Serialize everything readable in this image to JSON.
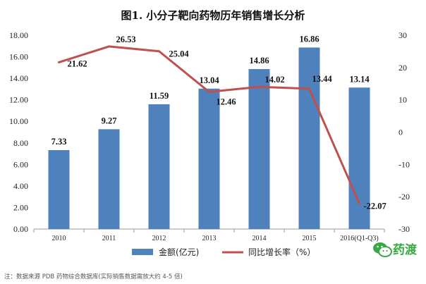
{
  "chart_data": {
    "type": "bar",
    "title": "图1. 小分子靶向药物历年销售增长分析",
    "categories": [
      "2010",
      "2011",
      "2012",
      "2013",
      "2014",
      "2015",
      "2016(Q1-Q3)"
    ],
    "series": [
      {
        "name": "金额(亿元)",
        "type": "bar",
        "axis": "left",
        "values": [
          7.33,
          9.27,
          11.59,
          13.04,
          14.86,
          16.86,
          13.14
        ],
        "labels": [
          "7.33",
          "9.27",
          "11.59",
          "13.04",
          "14.86",
          "16.86",
          "13.14"
        ],
        "color": "#4f81bd"
      },
      {
        "name": "同比增长率（%）",
        "type": "line",
        "axis": "right",
        "values": [
          21.62,
          26.53,
          25.04,
          12.46,
          14.02,
          13.44,
          -22.07
        ],
        "labels": [
          "21.62",
          "26.53",
          "25.04",
          "12.46",
          "14.02",
          "13.44",
          "-22.07"
        ],
        "color": "#c0504d"
      }
    ],
    "left_axis": {
      "ylim": [
        0,
        18
      ],
      "ticks": [
        "0.00",
        "2.00",
        "4.00",
        "6.00",
        "8.00",
        "10.00",
        "12.00",
        "14.00",
        "16.00",
        "18.00"
      ]
    },
    "right_axis": {
      "ylim": [
        -30,
        30
      ],
      "ticks": [
        "-30",
        "-20",
        "-10",
        "0",
        "10",
        "20",
        "30"
      ]
    },
    "legend_position": "bottom",
    "grid": false
  },
  "footnote": "注：数据来源 PDB 药物综合数据库(实际销售数据需放大约 4-5 倍)",
  "watermark": {
    "text": "药渡",
    "icon": "wechat-icon",
    "color": "#39a845"
  }
}
